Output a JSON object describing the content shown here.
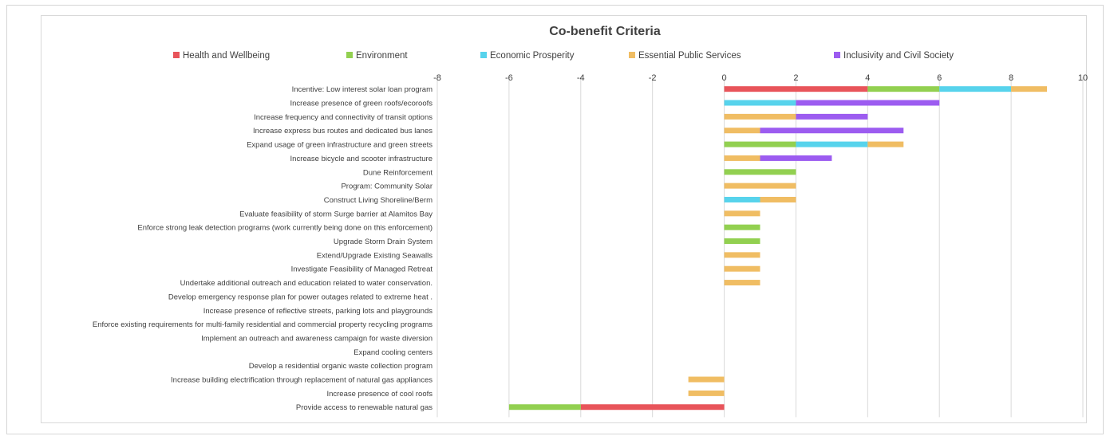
{
  "chart_data": {
    "type": "bar",
    "orientation": "horizontal",
    "stacked": true,
    "title": "Co-benefit Criteria",
    "xlim": [
      -8,
      10
    ],
    "xticks": [
      -8,
      -6,
      -4,
      -2,
      0,
      2,
      4,
      6,
      8,
      10
    ],
    "grid": true,
    "legend_position": "top",
    "categories": [
      "Incentive: Low interest solar loan program",
      "Increase presence of green roofs/ecoroofs",
      "Increase frequency and connectivity of transit options",
      "Increase express bus routes and dedicated bus lanes",
      "Expand usage of green infrastructure and green streets",
      "Increase bicycle and scooter infrastructure",
      "Dune Reinforcement",
      "Program: Community Solar",
      "Construct Living Shoreline/Berm",
      "Evaluate feasibility of storm Surge barrier at Alamitos Bay",
      "Enforce strong leak detection programs (work currently being done on this enforcement)",
      "Upgrade Storm Drain System",
      "Extend/Upgrade Existing Seawalls",
      "Investigate Feasibility of Managed Retreat",
      "Undertake additional outreach and education related to water conservation.",
      "Develop emergency response plan for power outages related to extreme heat .",
      "Increase presence of reflective streets, parking lots and playgrounds",
      "Enforce existing requirements for multi-family residential and commercial property recycling programs",
      "Implement an outreach and awareness campaign for waste diversion",
      "Expand cooling centers",
      "Develop a residential organic waste collection program",
      "Increase building electrification through replacement of natural gas appliances",
      "Increase presence of cool roofs",
      "Provide access to renewable natural gas"
    ],
    "series": [
      {
        "name": "Health and Wellbeing",
        "color": "#e8545a",
        "values": [
          4,
          0,
          0,
          0,
          0,
          0,
          0,
          0,
          0,
          0,
          0,
          0,
          0,
          0,
          0,
          0,
          0,
          0,
          0,
          0,
          0,
          0,
          0,
          -4
        ]
      },
      {
        "name": "Environment",
        "color": "#92d050",
        "values": [
          2,
          0,
          0,
          0,
          2,
          0,
          2,
          0,
          0,
          0,
          1,
          1,
          0,
          0,
          0,
          0,
          0,
          0,
          0,
          0,
          0,
          0,
          0,
          -2
        ]
      },
      {
        "name": "Economic Prosperity",
        "color": "#57d3ec",
        "values": [
          2,
          2,
          0,
          0,
          2,
          0,
          0,
          0,
          1,
          0,
          0,
          0,
          0,
          0,
          0,
          0,
          0,
          0,
          0,
          0,
          0,
          0,
          0,
          0
        ]
      },
      {
        "name": "Essential Public Services",
        "color": "#f0bd63",
        "values": [
          1,
          0,
          2,
          1,
          1,
          1,
          0,
          2,
          1,
          1,
          0,
          0,
          1,
          1,
          1,
          0,
          0,
          0,
          0,
          0,
          0,
          -1,
          -1,
          0
        ]
      },
      {
        "name": "Inclusivity and Civil Society",
        "color": "#9c5cf0",
        "values": [
          0,
          4,
          2,
          4,
          0,
          2,
          0,
          0,
          0,
          0,
          0,
          0,
          0,
          0,
          0,
          0,
          0,
          0,
          0,
          0,
          0,
          0,
          0,
          0
        ]
      }
    ]
  }
}
